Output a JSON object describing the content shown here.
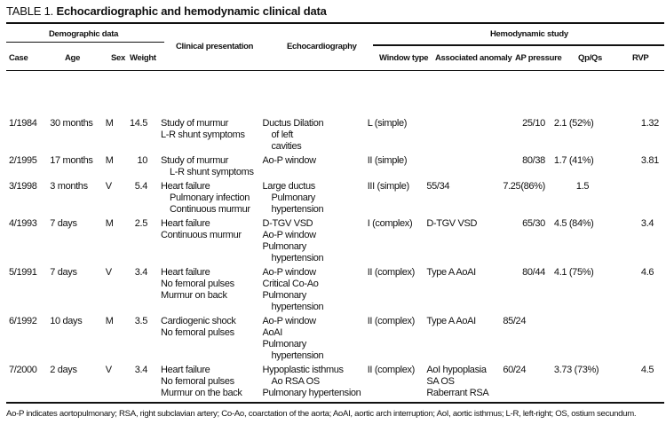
{
  "title": {
    "label": "TABLE 1.",
    "text": "Echocardiographic and hemodynamic clinical data"
  },
  "groups": {
    "demographic": "Demographic data",
    "hemodynamic": "Hemodynamic study"
  },
  "headers": {
    "case": "Case",
    "age": "Age",
    "sex": "Sex",
    "weight": "Weight",
    "clinical": "Clinical presentation",
    "echo": "Echocardiography",
    "window": "Window type",
    "assoc": "Associated anomaly",
    "ap": "AP pressure",
    "qpqs": "Qp/Qs",
    "rvp": "RVP"
  },
  "rows": [
    {
      "case": "1/1984",
      "age": "30 months",
      "sex": "M",
      "weight": "14.5",
      "clinical": [
        "Study of murmur",
        "L-R shunt symptoms"
      ],
      "echo": [
        "Ductus Dilation",
        "of left",
        "cavities"
      ],
      "window": "L (simple)",
      "assoc": [],
      "ap": "25/10",
      "qpqs": "2.1 (52%)",
      "rvp": "1.32"
    },
    {
      "case": "2/1995",
      "age": "17 months",
      "sex": "M",
      "weight": "10",
      "clinical": [
        "Study of murmur",
        "L-R shunt symptoms"
      ],
      "echo": [
        "Ao-P window"
      ],
      "window": "II (simple)",
      "assoc": [],
      "ap": "80/38",
      "qpqs": "1.7 (41%)",
      "rvp": "3.81"
    },
    {
      "case": "3/1998",
      "age": "3 months",
      "sex": "V",
      "weight": "5.4",
      "clinical": [
        "Heart failure",
        "Pulmonary infection",
        "Continuous murmur"
      ],
      "echo": [
        "Large ductus",
        "Pulmonary",
        "hypertension"
      ],
      "window": "III (simple)",
      "assoc": [
        "55/34"
      ],
      "ap": "7.25(86%)",
      "qpqs": "1.5",
      "rvp": ""
    },
    {
      "case": "4/1993",
      "age": "7 days",
      "sex": "M",
      "weight": "2.5",
      "clinical": [
        "Heart failure",
        "Continuous murmur"
      ],
      "echo": [
        "D-TGV VSD",
        "Ao-P window",
        "Pulmonary",
        "hypertension"
      ],
      "window": "I (complex)",
      "assoc": [
        "D-TGV VSD"
      ],
      "ap": "65/30",
      "qpqs": "4.5 (84%)",
      "rvp": "3.4"
    },
    {
      "case": "5/1991",
      "age": "7 days",
      "sex": "V",
      "weight": "3.4",
      "clinical": [
        "Heart failure",
        "No femoral pulses",
        "Murmur on back"
      ],
      "echo": [
        "Ao-P window",
        "Critical Co-Ao",
        "Pulmonary",
        "hypertension"
      ],
      "window": "II (complex)",
      "assoc": [
        "Type A AoAI"
      ],
      "ap": "80/44",
      "qpqs": "4.1 (75%)",
      "rvp": "4.6"
    },
    {
      "case": "6/1992",
      "age": "10 days",
      "sex": "M",
      "weight": "3.5",
      "clinical": [
        "Cardiogenic shock",
        "No femoral pulses"
      ],
      "echo": [
        "Ao-P window",
        "AoAI",
        "Pulmonary",
        "hypertension"
      ],
      "window": "II (complex)",
      "assoc": [
        "Type A AoAI"
      ],
      "ap": "85/24",
      "qpqs": "",
      "rvp": ""
    },
    {
      "case": "7/2000",
      "age": "2 days",
      "sex": "V",
      "weight": "3.4",
      "clinical": [
        "Heart failure",
        "No femoral pulses",
        "Murmur on the back"
      ],
      "echo": [
        "Hypoplastic isthmus",
        "Ao RSA OS",
        "Pulmonary hypertension"
      ],
      "window": "II (complex)",
      "assoc": [
        "AoI hypoplasia",
        "SA OS",
        "Raberrant RSA"
      ],
      "ap": "60/24",
      "qpqs": "3.73 (73%)",
      "rvp": "4.5"
    }
  ],
  "footnote": "Ao-P indicates aortopulmonary; RSA, right subclavian artery; Co-Ao, coarctation of the aorta; AoAI, aortic arch interruption; AoI, aortic isthmus; L-R, left-right; OS, ostium secundum."
}
